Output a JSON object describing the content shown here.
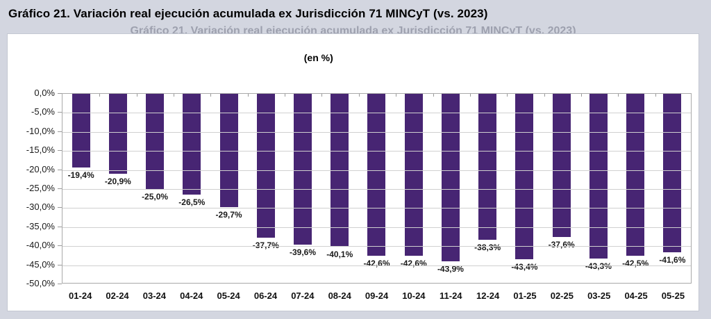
{
  "page": {
    "title": "Gráfico 21. Variación real ejecución acumulada ex Jurisdicción 71 MINCyT (vs. 2023)"
  },
  "chart_data": {
    "type": "bar",
    "title": "Gráfico 21. Variación real ejecución acumulada ex Jurisdicción 71 MINCyT (vs. 2023)",
    "subtitle": "(en %)",
    "categories": [
      "01-24",
      "02-24",
      "03-24",
      "04-24",
      "05-24",
      "06-24",
      "07-24",
      "08-24",
      "09-24",
      "10-24",
      "11-24",
      "12-24",
      "01-25",
      "02-25",
      "03-25",
      "04-25",
      "05-25"
    ],
    "values": [
      -19.4,
      -20.9,
      -25.0,
      -26.5,
      -29.7,
      -37.7,
      -39.6,
      -40.1,
      -42.6,
      -42.6,
      -43.9,
      -38.3,
      -43.4,
      -37.6,
      -43.3,
      -42.5,
      -41.6
    ],
    "value_labels": [
      "-19,4%",
      "-20,9%",
      "-25,0%",
      "-26,5%",
      "-29,7%",
      "-37,7%",
      "-39,6%",
      "-40,1%",
      "-42,6%",
      "-42,6%",
      "-43,9%",
      "-38,3%",
      "-43,4%",
      "-37,6%",
      "-43,3%",
      "-42,5%",
      "-41,6%"
    ],
    "y_tick_labels": [
      "0,0%",
      "-5,0%",
      "-10,0%",
      "-15,0%",
      "-20,0%",
      "-25,0%",
      "-30,0%",
      "-35,0%",
      "-40,0%",
      "-45,0%",
      "-50,0%"
    ],
    "ylim": [
      0,
      -50
    ],
    "xlabel": "",
    "ylabel": "",
    "grid": true,
    "legend": "none",
    "colors": {
      "bar": "#472573",
      "grid": "#d0d0d0",
      "axis": "#9a9a9a",
      "page_background": "#d3d6e0",
      "plot_background": "#ffffff",
      "label_text": "#1a1a1a"
    }
  }
}
